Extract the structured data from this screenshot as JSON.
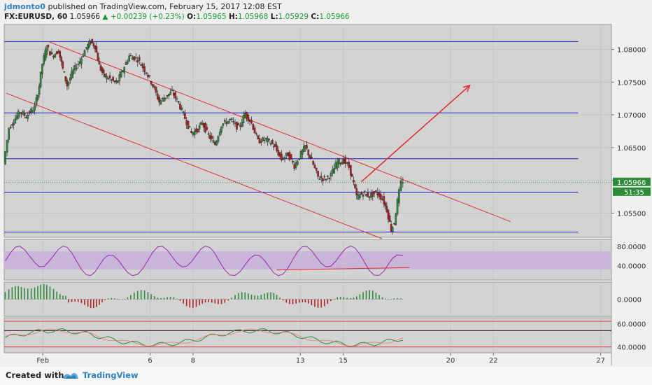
{
  "header": {
    "author": "jdmonto0",
    "published_text": "published on TradingView.com, February 15, 2017 12:08 EST",
    "symbol": "FX:EURUSD, 60",
    "last": "1.05966",
    "change_arrow": "▲",
    "change": "+0.00239 (+0.23%)",
    "o_label": "O:",
    "o_value": "1.05965",
    "h_label": "H:",
    "h_value": "1.05968",
    "l_label": "L:",
    "l_value": "1.05929",
    "c_label": "C:",
    "c_value": "1.05966"
  },
  "footer": {
    "created_with": "Created with",
    "brand": "TradingView",
    "logo_icon": "tradingview-logo-icon"
  },
  "colors": {
    "background": "#f0f0f0",
    "plot_bg": "#d3d3d3",
    "bull": "#2e8b3a",
    "bear": "#b0231f",
    "channel": "#e03030",
    "hline": "#1a1acc",
    "rsi_line": "#9c27b0",
    "rsi_band": "#c9b5d8",
    "price_tag": "#2e8b3a"
  },
  "chart_data": {
    "type": "candlestick",
    "symbol": "EURUSD",
    "interval": "60",
    "x_tick_labels": [
      "Feb",
      "6",
      "8",
      "13",
      "15",
      "20",
      "22",
      "27"
    ],
    "x_tick_days": [
      1,
      6,
      8,
      13,
      15,
      20,
      22,
      27
    ],
    "xlim_days": [
      -0.8,
      27.5
    ],
    "price_axis": {
      "ticks": [
        "1.08000",
        "1.07500",
        "1.07000",
        "1.06500",
        "1.06000",
        "1.05500"
      ],
      "tick_values": [
        1.08,
        1.075,
        1.07,
        1.065,
        1.06,
        1.055
      ],
      "ylim": [
        1.0513,
        1.0838
      ]
    },
    "current_price_label": "1.05966",
    "countdown_label": "51:35",
    "horizontal_lines": [
      1.0812,
      1.0703,
      1.0633,
      1.0582,
      1.0521
    ],
    "channel_upper": {
      "from": [
        1.25,
        1.0812
      ],
      "to": [
        22.8,
        1.0537
      ]
    },
    "channel_lower": {
      "from": [
        -0.7,
        1.0733
      ],
      "to": [
        16.8,
        1.0511
      ]
    },
    "projection_arrow": {
      "from": [
        15.85,
        1.0598
      ],
      "to": [
        20.9,
        1.0745
      ]
    },
    "close_path": [
      [
        -0.75,
        1.0625
      ],
      [
        -0.5,
        1.068
      ],
      [
        0.0,
        1.0705
      ],
      [
        0.3,
        1.0698
      ],
      [
        0.7,
        1.0712
      ],
      [
        0.9,
        1.0745
      ],
      [
        1.05,
        1.0778
      ],
      [
        1.25,
        1.0805
      ],
      [
        1.5,
        1.079
      ],
      [
        1.8,
        1.0798
      ],
      [
        2.0,
        1.077
      ],
      [
        2.2,
        1.0745
      ],
      [
        2.5,
        1.0768
      ],
      [
        2.8,
        1.0782
      ],
      [
        3.1,
        1.0803
      ],
      [
        3.3,
        1.0812
      ],
      [
        3.5,
        1.0805
      ],
      [
        3.7,
        1.0775
      ],
      [
        3.9,
        1.076
      ],
      [
        4.2,
        1.0755
      ],
      [
        4.5,
        1.0748
      ],
      [
        4.8,
        1.0768
      ],
      [
        5.1,
        1.079
      ],
      [
        5.5,
        1.0785
      ],
      [
        5.9,
        1.0765
      ],
      [
        6.2,
        1.0745
      ],
      [
        6.5,
        1.072
      ],
      [
        6.8,
        1.0728
      ],
      [
        7.1,
        1.0735
      ],
      [
        7.4,
        1.0718
      ],
      [
        7.7,
        1.0695
      ],
      [
        8.0,
        1.0672
      ],
      [
        8.3,
        1.0678
      ],
      [
        8.5,
        1.0688
      ],
      [
        8.8,
        1.0668
      ],
      [
        9.1,
        1.0655
      ],
      [
        9.4,
        1.0685
      ],
      [
        9.8,
        1.0692
      ],
      [
        10.2,
        1.068
      ],
      [
        10.5,
        1.0702
      ],
      [
        10.8,
        1.0688
      ],
      [
        11.1,
        1.066
      ],
      [
        11.4,
        1.0662
      ],
      [
        11.7,
        1.0658
      ],
      [
        11.9,
        1.065
      ],
      [
        12.2,
        1.0632
      ],
      [
        12.5,
        1.064
      ],
      [
        12.8,
        1.0622
      ],
      [
        13.1,
        1.064
      ],
      [
        13.3,
        1.0652
      ],
      [
        13.6,
        1.063
      ],
      [
        13.9,
        1.0605
      ],
      [
        14.2,
        1.0602
      ],
      [
        14.5,
        1.0608
      ],
      [
        14.8,
        1.0628
      ],
      [
        15.1,
        1.063
      ],
      [
        15.35,
        1.062
      ],
      [
        15.55,
        1.0595
      ],
      [
        15.7,
        1.0575
      ],
      [
        16.0,
        1.058
      ],
      [
        16.3,
        1.0576
      ],
      [
        16.6,
        1.0582
      ],
      [
        16.9,
        1.0572
      ],
      [
        17.1,
        1.0555
      ],
      [
        17.3,
        1.0525
      ],
      [
        17.45,
        1.0535
      ],
      [
        17.6,
        1.0568
      ],
      [
        17.78,
        1.05966
      ]
    ],
    "rsi": {
      "ticks": [
        "80.0000",
        "40.0000"
      ],
      "tick_values": [
        80,
        40
      ],
      "ylim": [
        10,
        95
      ],
      "band": [
        32,
        70
      ],
      "trendline": {
        "from": [
          11.9,
          31
        ],
        "to": [
          18.1,
          36
        ]
      }
    },
    "macd": {
      "ticks": [
        "0.0000"
      ],
      "tick_values": [
        0
      ],
      "ylim": [
        -1.2,
        1.2
      ]
    },
    "stoch": {
      "ticks": [
        "60.0000",
        "40.0000"
      ],
      "tick_values": [
        60,
        40
      ],
      "ylim": [
        35,
        65
      ],
      "levels": [
        62,
        54,
        40
      ]
    }
  }
}
